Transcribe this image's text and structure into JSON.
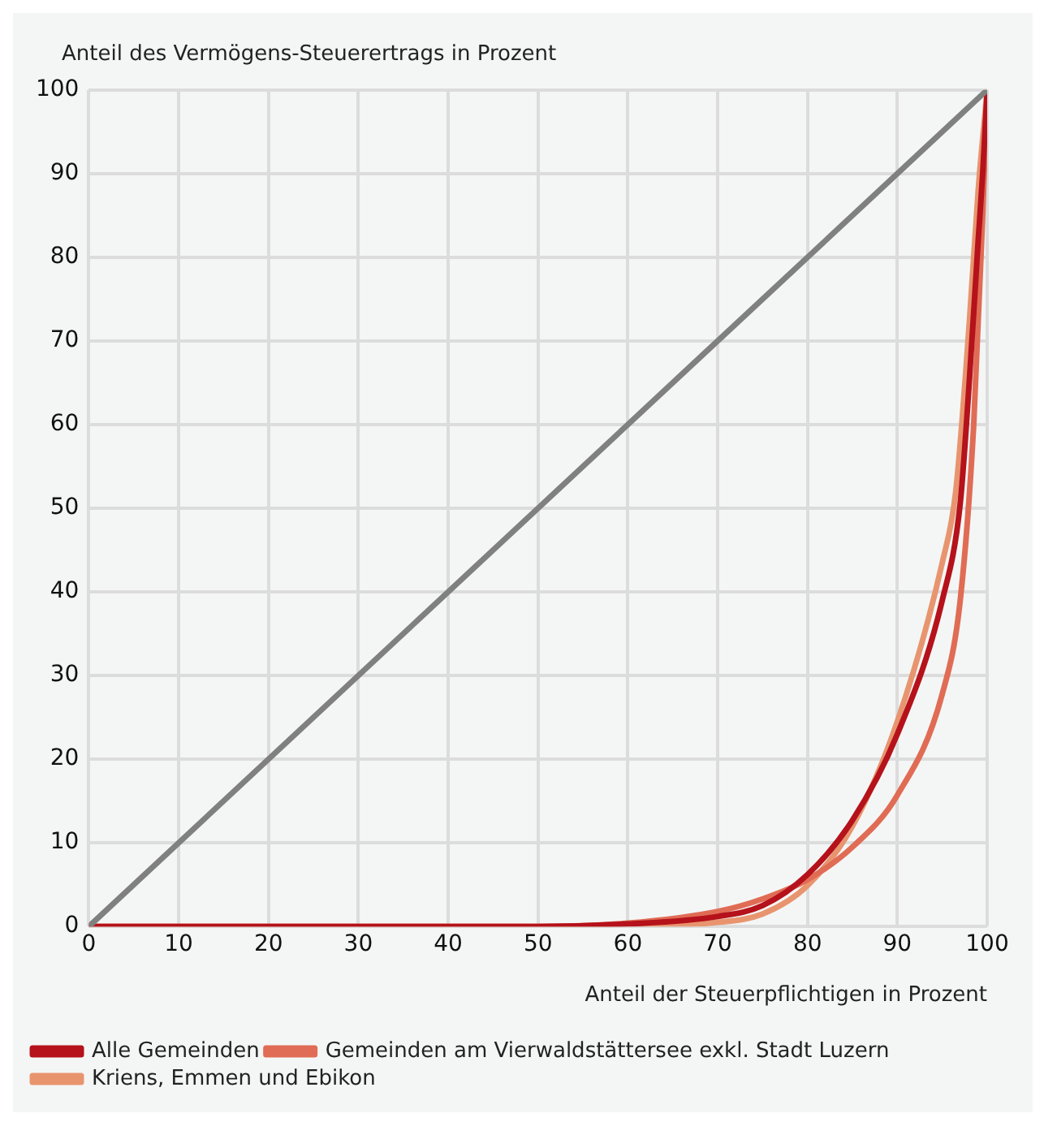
{
  "chart_data": {
    "type": "line",
    "ylabel": "Anteil des Vermögens-Steuerertrags in Prozent",
    "xlabel": "Anteil der Steuerpflichtigen in Prozent",
    "xlim": [
      0,
      100
    ],
    "ylim": [
      0,
      100
    ],
    "xticks": [
      0,
      10,
      20,
      30,
      40,
      50,
      60,
      70,
      80,
      90,
      100
    ],
    "yticks": [
      0,
      10,
      20,
      30,
      40,
      50,
      60,
      70,
      80,
      90,
      100
    ],
    "grid": true,
    "legend": "bottom",
    "marker": "none",
    "line_style": "solid",
    "series": [
      {
        "color": "#808080",
        "x": [
          0,
          100
        ],
        "values": [
          0,
          100
        ]
      },
      {
        "name": "Alle Gemeinden",
        "color": "#b5121b",
        "x": [
          0,
          50,
          60,
          70,
          75,
          80,
          85,
          90,
          95,
          97,
          98,
          99,
          99.5,
          100
        ],
        "values": [
          0,
          0,
          0.3,
          1.2,
          2.5,
          6.2,
          12.7,
          23,
          39,
          50.6,
          65,
          82,
          90,
          100
        ]
      },
      {
        "name": "Gemeinden am Vierwaldstättersee exkl. Stadt Luzern",
        "color": "#e06c55",
        "x": [
          0,
          50,
          60,
          70,
          75,
          80,
          85,
          90,
          95,
          97,
          98.5,
          99.5,
          100
        ],
        "values": [
          0,
          0,
          0.4,
          1.8,
          3.3,
          5.6,
          9.5,
          15.7,
          27.8,
          39,
          60,
          85,
          100
        ]
      },
      {
        "name": "Kriens, Emmen und Ebikon",
        "color": "#e8956f",
        "x": [
          0,
          50,
          60,
          70,
          75,
          80,
          85,
          90,
          95,
          96.5,
          98,
          99,
          100
        ],
        "values": [
          0,
          0,
          0.1,
          0.5,
          1.5,
          4.9,
          12,
          24.5,
          43.5,
          52,
          72,
          88,
          100
        ]
      }
    ]
  }
}
